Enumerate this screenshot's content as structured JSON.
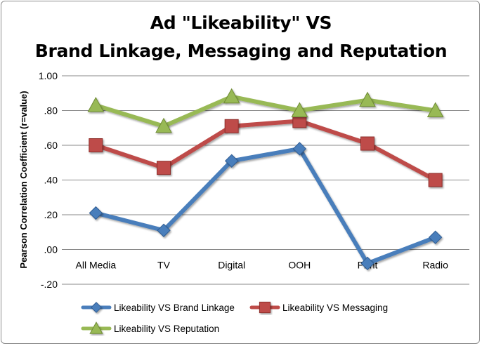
{
  "chart_data": {
    "type": "line",
    "title_line1": "Ad \"Likeability\"  VS",
    "title_line2": "Brand Linkage, Messaging and Reputation",
    "ylabel": "Pearson Correlation Coefficient (r=value)",
    "categories": [
      "All Media",
      "TV",
      "Digital",
      "OOH",
      "Print",
      "Radio"
    ],
    "yticks": [
      "1.00",
      ".80",
      ".60",
      ".40",
      ".20",
      ".00",
      "-.20"
    ],
    "ylim": [
      -0.2,
      1.0
    ],
    "grid": true,
    "legend_position": "bottom",
    "series": [
      {
        "name": "Likeability VS Brand Linkage",
        "color": "#4a7ebb",
        "marker": "diamond",
        "values": [
          0.21,
          0.11,
          0.51,
          0.58,
          -0.08,
          0.07
        ]
      },
      {
        "name": "Likeability VS Messaging",
        "color": "#be4b48",
        "marker": "square",
        "values": [
          0.6,
          0.47,
          0.71,
          0.74,
          0.61,
          0.4
        ]
      },
      {
        "name": "Likeability VS Reputation",
        "color": "#98b954",
        "marker": "triangle",
        "values": [
          0.83,
          0.71,
          0.88,
          0.8,
          0.86,
          0.8
        ]
      }
    ]
  }
}
